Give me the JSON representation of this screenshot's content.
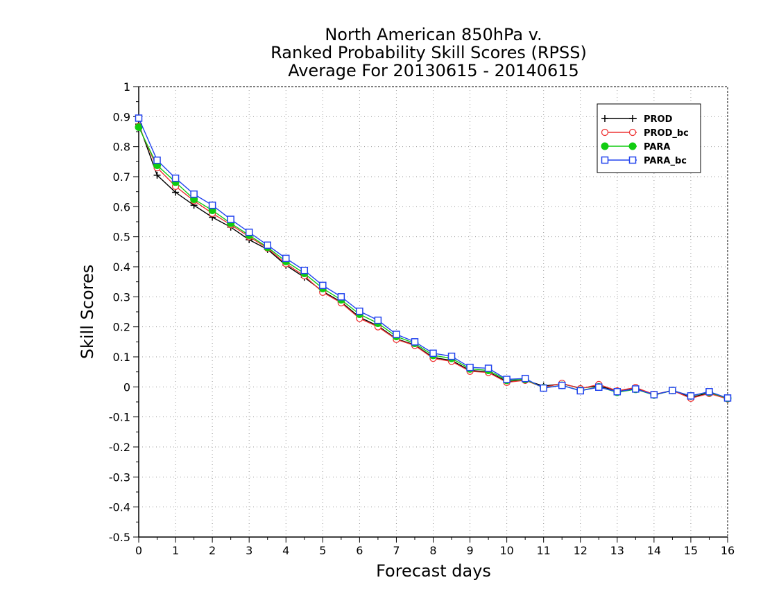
{
  "chart_data": {
    "type": "line",
    "title_lines": [
      "North American 850hPa v.",
      "Ranked Probability Skill Scores (RPSS)",
      "Average For 20130615 - 20140615"
    ],
    "xlabel": "Forecast days",
    "ylabel": "Skill Scores",
    "xlim": [
      0,
      16
    ],
    "ylim": [
      -0.5,
      1
    ],
    "xticks": [
      0,
      1,
      2,
      3,
      4,
      5,
      6,
      7,
      8,
      9,
      10,
      11,
      12,
      13,
      14,
      15,
      16
    ],
    "xtick_labels": [
      "0",
      "1",
      "2",
      "3",
      "4",
      "5",
      "6",
      "7",
      "8",
      "9",
      "10",
      "11",
      "12",
      "13",
      "14",
      "15",
      "16"
    ],
    "yticks": [
      -0.5,
      -0.4,
      -0.3,
      -0.2,
      -0.1,
      0,
      0.1,
      0.2,
      0.3,
      0.4,
      0.5,
      0.6,
      0.7,
      0.8,
      0.9,
      1
    ],
    "ytick_labels": [
      "-0.5",
      "-0.4",
      "-0.3",
      "-0.2",
      "-0.1",
      "0",
      "0.1",
      "0.2",
      "0.3",
      "0.4",
      "0.5",
      "0.6",
      "0.7",
      "0.8",
      "0.9",
      "1"
    ],
    "grid": true,
    "legend_position": "top-right",
    "x": [
      0,
      0.5,
      1,
      1.5,
      2,
      2.5,
      3,
      3.5,
      4,
      4.5,
      5,
      5.5,
      6,
      6.5,
      7,
      7.5,
      8,
      8.5,
      9,
      9.5,
      10,
      10.5,
      11,
      11.5,
      12,
      12.5,
      13,
      13.5,
      14,
      14.5,
      15,
      15.5,
      16
    ],
    "series": [
      {
        "name": "PROD",
        "color": "#000000",
        "marker": "plus",
        "values": [
          0.875,
          0.705,
          0.648,
          0.605,
          0.565,
          0.532,
          0.49,
          0.458,
          0.405,
          0.365,
          0.318,
          0.283,
          0.232,
          0.203,
          0.16,
          0.14,
          0.098,
          0.088,
          0.055,
          0.05,
          0.018,
          0.022,
          0.003,
          0.01,
          -0.004,
          0.003,
          -0.013,
          -0.004,
          -0.027,
          -0.012,
          -0.035,
          -0.02,
          -0.04
        ]
      },
      {
        "name": "PROD_bc",
        "color": "#ee3333",
        "marker": "open-circle",
        "values": [
          0.868,
          0.73,
          0.668,
          0.62,
          0.578,
          0.54,
          0.5,
          0.462,
          0.41,
          0.37,
          0.315,
          0.28,
          0.228,
          0.2,
          0.158,
          0.138,
          0.095,
          0.085,
          0.052,
          0.048,
          0.015,
          0.022,
          -0.002,
          0.012,
          -0.006,
          0.008,
          -0.013,
          -0.002,
          -0.025,
          -0.012,
          -0.038,
          -0.022,
          -0.04
        ]
      },
      {
        "name": "PARA",
        "color": "#11cc11",
        "marker": "filled-circle",
        "values": [
          0.865,
          0.738,
          0.682,
          0.625,
          0.588,
          0.545,
          0.505,
          0.465,
          0.418,
          0.378,
          0.328,
          0.29,
          0.242,
          0.212,
          0.168,
          0.145,
          0.105,
          0.095,
          0.06,
          0.055,
          0.022,
          0.025,
          -0.003,
          0.005,
          -0.012,
          0.0,
          -0.018,
          -0.008,
          -0.027,
          -0.012,
          -0.03,
          -0.018,
          -0.038
        ]
      },
      {
        "name": "PARA_bc",
        "color": "#2244ee",
        "marker": "open-square",
        "values": [
          0.895,
          0.755,
          0.695,
          0.642,
          0.605,
          0.558,
          0.515,
          0.472,
          0.428,
          0.388,
          0.338,
          0.3,
          0.252,
          0.222,
          0.175,
          0.15,
          0.112,
          0.102,
          0.065,
          0.062,
          0.025,
          0.028,
          -0.004,
          0.005,
          -0.013,
          -0.001,
          -0.016,
          -0.007,
          -0.026,
          -0.012,
          -0.03,
          -0.016,
          -0.037
        ]
      }
    ]
  }
}
